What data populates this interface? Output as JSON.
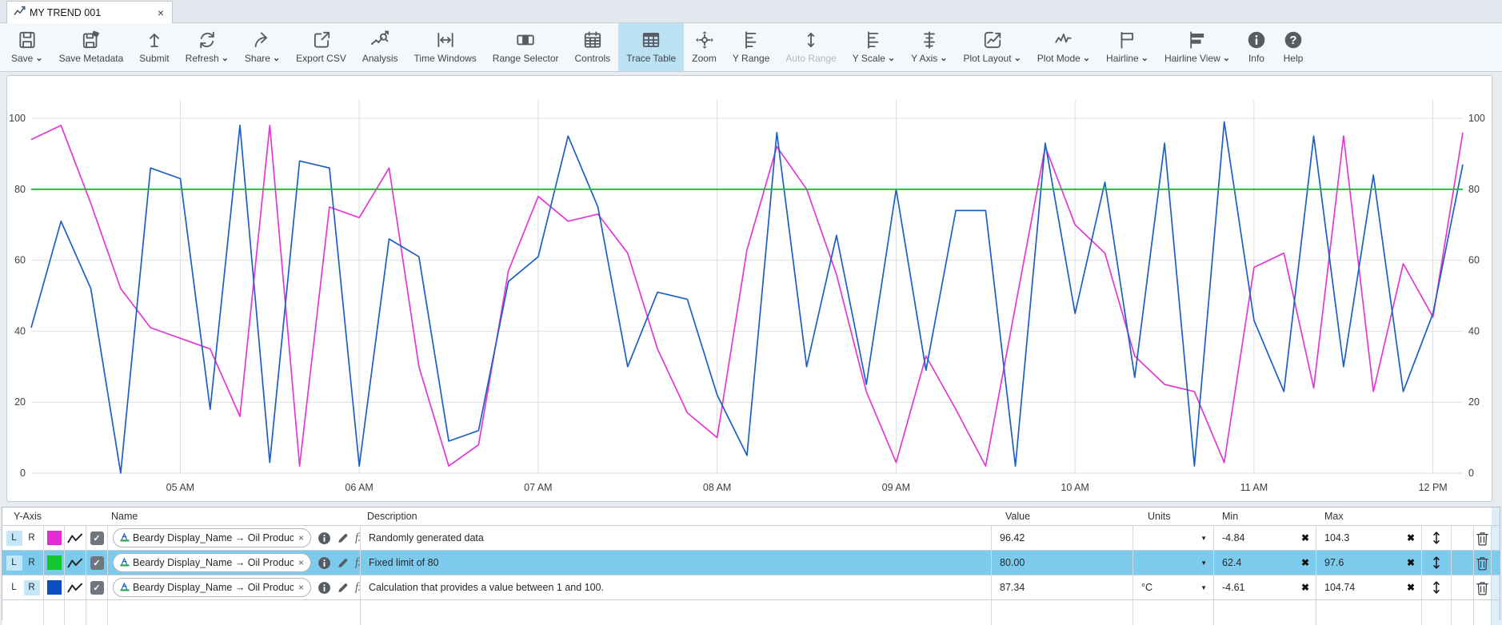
{
  "tab": {
    "title": "MY TREND 001"
  },
  "glyphs": {
    "dropdown": "▼",
    "clear": "✖",
    "remove": "×",
    "check": "✓",
    "chevron": "⌄",
    "close": "×"
  },
  "colors": {
    "selected_row_bg": "#7DCBEC",
    "axis_button_active_bg": "#C5E6F6",
    "toolbar_active_bg": "#BCE1F2",
    "series_magenta": "#E437D4",
    "series_green": "#0CC12B",
    "series_blue": "#1E5FC2"
  },
  "toolbar": {
    "items": [
      {
        "id": "save",
        "label": "Save",
        "icon": "save",
        "dropdown": true
      },
      {
        "id": "save-metadata",
        "label": "Save Metadata",
        "icon": "save-metadata"
      },
      {
        "id": "submit",
        "label": "Submit",
        "icon": "submit"
      },
      {
        "id": "refresh",
        "label": "Refresh",
        "icon": "refresh",
        "dropdown": true
      },
      {
        "id": "share",
        "label": "Share",
        "icon": "share",
        "dropdown": true
      },
      {
        "id": "export-csv",
        "label": "Export CSV",
        "icon": "export-csv"
      },
      {
        "id": "analysis",
        "label": "Analysis",
        "icon": "analysis"
      },
      {
        "id": "time-windows",
        "label": "Time Windows",
        "icon": "time-windows"
      },
      {
        "id": "range-selector",
        "label": "Range Selector",
        "icon": "range-selector"
      },
      {
        "id": "controls",
        "label": "Controls",
        "icon": "controls"
      },
      {
        "id": "trace-table",
        "label": "Trace Table",
        "icon": "trace-table",
        "active": true
      },
      {
        "id": "zoom",
        "label": "Zoom",
        "icon": "zoom"
      },
      {
        "id": "y-range",
        "label": "Y Range",
        "icon": "y-range"
      },
      {
        "id": "auto-range",
        "label": "Auto Range",
        "icon": "auto-range",
        "disabled": true
      },
      {
        "id": "y-scale",
        "label": "Y Scale",
        "icon": "y-scale",
        "dropdown": true
      },
      {
        "id": "y-axis",
        "label": "Y Axis",
        "icon": "y-axis",
        "dropdown": true
      },
      {
        "id": "plot-layout",
        "label": "Plot Layout",
        "icon": "plot-layout",
        "dropdown": true
      },
      {
        "id": "plot-mode",
        "label": "Plot Mode",
        "icon": "plot-mode",
        "dropdown": true
      },
      {
        "id": "hairline",
        "label": "Hairline",
        "icon": "hairline",
        "dropdown": true
      },
      {
        "id": "hairline-view",
        "label": "Hairline View",
        "icon": "hairline-view",
        "dropdown": true
      },
      {
        "id": "info",
        "label": "Info",
        "icon": "info"
      },
      {
        "id": "help",
        "label": "Help",
        "icon": "help"
      }
    ]
  },
  "chart_data": {
    "type": "line",
    "title": "",
    "grid": true,
    "x_axis": {
      "tick_labels": [
        "05 AM",
        "06 AM",
        "07 AM",
        "08 AM",
        "09 AM",
        "10 AM",
        "11 AM",
        "12 PM"
      ],
      "tick_hours": [
        5,
        6,
        7,
        8,
        9,
        10,
        11,
        12
      ],
      "start_hour": 4.167,
      "end_hour": 12.167,
      "sample_step_hours": 0.16667
    },
    "y_axis": {
      "min": 0,
      "max": 100,
      "ticks": [
        0,
        20,
        40,
        60,
        80,
        100
      ],
      "dual_labels": true
    },
    "series": [
      {
        "name": "Randomly generated data",
        "color": "#E437D4",
        "values": [
          94,
          98,
          76,
          52,
          41,
          38,
          35,
          16,
          98,
          2,
          75,
          72,
          86,
          30,
          2,
          8,
          57,
          78,
          71,
          73,
          62,
          35,
          17,
          10,
          63,
          92,
          80,
          56,
          23,
          3,
          33,
          18,
          2,
          47,
          92,
          70,
          62,
          33,
          25,
          23,
          3,
          58,
          62,
          24,
          95,
          23,
          59,
          44,
          96
        ]
      },
      {
        "name": "Fixed limit of 80",
        "color": "#0CC12B",
        "constant_value": 80
      },
      {
        "name": "Calculation that provides a value between 1 and 100",
        "color": "#1E5FC2",
        "values": [
          41,
          71,
          52,
          0,
          86,
          83,
          18,
          98,
          3,
          88,
          86,
          2,
          66,
          61,
          9,
          12,
          54,
          61,
          95,
          75,
          30,
          51,
          49,
          22,
          5,
          96,
          30,
          67,
          25,
          80,
          29,
          74,
          74,
          2,
          93,
          45,
          82,
          27,
          93,
          2,
          99,
          43,
          23,
          95,
          30,
          84,
          23,
          45,
          87
        ]
      }
    ]
  },
  "trace_table": {
    "headers": {
      "y_axis": "Y-Axis",
      "name": "Name",
      "description": "Description",
      "value": "Value",
      "units": "Units",
      "min": "Min",
      "max": "Max"
    },
    "axis_labels": {
      "left": "L",
      "right": "R"
    },
    "rows": [
      {
        "selected": false,
        "left_active": true,
        "right_active": false,
        "color": "#E32BD8",
        "checked": true,
        "name": "Beardy Display_Name → Oil Producing ...",
        "description": "Randomly generated data",
        "value": "96.42",
        "units": "",
        "min": "-4.84",
        "max": "104.3"
      },
      {
        "selected": true,
        "left_active": true,
        "right_active": false,
        "color": "#12C62E",
        "checked": true,
        "name": "Beardy Display_Name → Oil Producing ...",
        "description": "Fixed limit of 80",
        "value": "80.00",
        "units": "",
        "min": "62.4",
        "max": "97.6"
      },
      {
        "selected": false,
        "left_active": false,
        "right_active": true,
        "color": "#0C4EC0",
        "checked": true,
        "name": "Beardy Display_Name → Oil Producing ...",
        "description": "Calculation that provides a value between 1 and 100.",
        "value": "87.34",
        "units": "°C",
        "min": "-4.61",
        "max": "104.74"
      }
    ]
  }
}
